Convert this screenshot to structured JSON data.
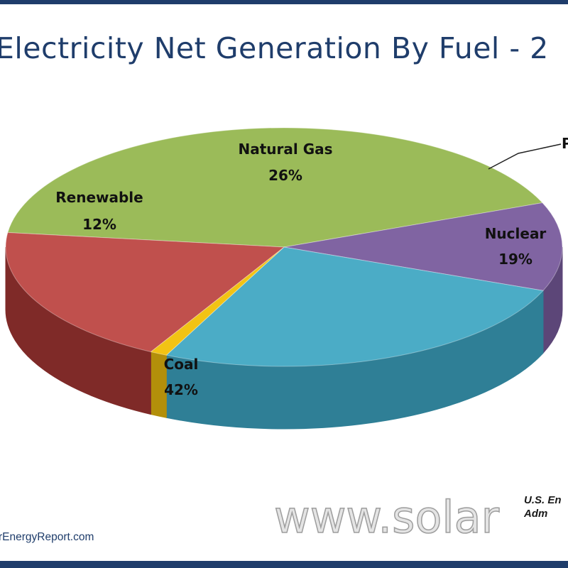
{
  "header": {
    "title": "Electricity Net Generation By Fuel - 2"
  },
  "chart_data": {
    "type": "pie",
    "style": "3d",
    "title": "Electricity Net Generation By Fuel - 2",
    "slices": [
      {
        "name": "Coal",
        "value": 42,
        "label_name": "Coal",
        "label_value": "42%",
        "color": "#9bbb59",
        "side_color": "#6f8f35"
      },
      {
        "name": "Renewable",
        "value": 12,
        "label_name": "Renewable",
        "label_value": "12%",
        "color": "#8064a2",
        "side_color": "#5c4678"
      },
      {
        "name": "Natural Gas",
        "value": 26,
        "label_name": "Natural Gas",
        "label_value": "26%",
        "color": "#4bacc6",
        "side_color": "#2f7f96"
      },
      {
        "name": "P",
        "value": 1,
        "label_name": "P",
        "label_value": "",
        "color": "#f2c314",
        "side_color": "#b38f0a"
      },
      {
        "name": "Nuclear",
        "value": 19,
        "label_name": "Nuclear",
        "label_value": "19%",
        "color": "#c0504d",
        "side_color": "#7f2a28"
      }
    ]
  },
  "footer": {
    "source_line1": "U.S. En",
    "source_line2": "Adm",
    "site": "rEnergyReport.com",
    "watermark": "www.solar"
  }
}
